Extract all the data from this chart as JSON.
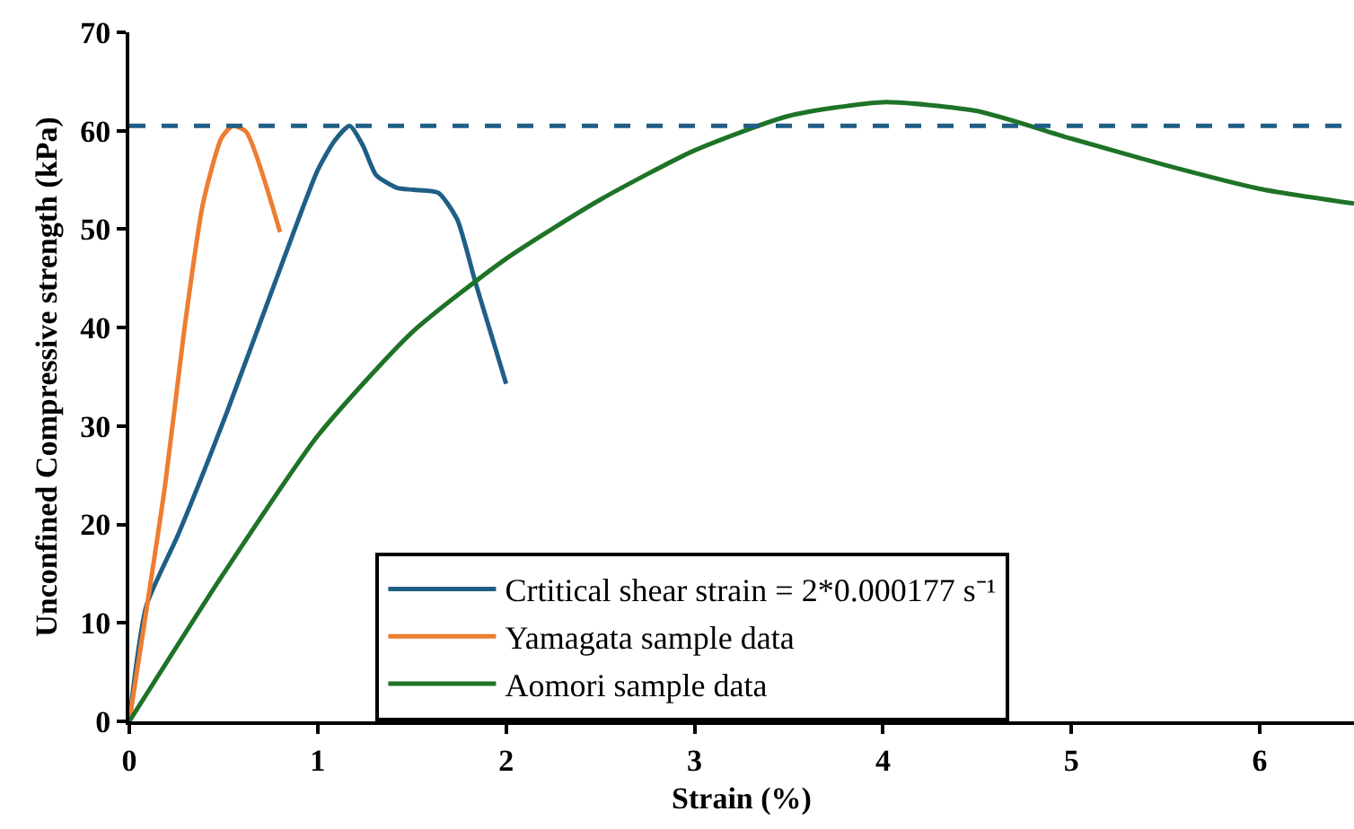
{
  "chart_data": {
    "type": "line",
    "xlabel": "Strain (%)",
    "ylabel": "Unconfined Compressive strength (kPa)",
    "xlim": [
      0,
      6.5
    ],
    "xticks": [
      0,
      1,
      2,
      3,
      4,
      5,
      6
    ],
    "ylim": [
      0,
      70
    ],
    "yticks": [
      0,
      10,
      20,
      30,
      40,
      50,
      60,
      70
    ],
    "legend": "bottom",
    "marker": "none",
    "line_style": "solid",
    "series": [
      {
        "name": "Crtitical shear strain = 2*0.000177 s⁻¹",
        "color": "#1f5f86",
        "x": [
          0,
          0.09,
          0.26,
          0.52,
          0.82,
          1.0,
          1.09,
          1.17,
          1.24,
          1.31,
          1.42,
          1.51,
          1.64,
          1.74,
          1.84,
          2.0
        ],
        "values": [
          0,
          11.7,
          19,
          31.5,
          47,
          56,
          59,
          60.5,
          58.5,
          55.5,
          54.2,
          54,
          53.7,
          51,
          44.4,
          34.3
        ]
      },
      {
        "name": "Yamagata sample data",
        "color": "#ed7d31",
        "x": [
          0,
          0.19,
          0.29,
          0.39,
          0.49,
          0.55,
          0.62,
          0.8
        ],
        "values": [
          0,
          24,
          39.5,
          52.5,
          59.3,
          60.5,
          59.9,
          49.7
        ]
      },
      {
        "name": "Aomori sample data",
        "color": "#1e7327",
        "x": [
          0,
          0.5,
          1,
          1.5,
          2,
          2.5,
          3,
          3.5,
          4,
          4.5,
          5,
          5.5,
          6,
          6.5
        ],
        "values": [
          0,
          15,
          29,
          39.5,
          47,
          53,
          58,
          61.5,
          62.9,
          62,
          59.2,
          56.5,
          54.1,
          52.6
        ]
      }
    ],
    "ref_lines": [
      {
        "axis": "y",
        "value": 60.5,
        "color": "#1f5f86",
        "line_style": "dashed"
      }
    ]
  }
}
